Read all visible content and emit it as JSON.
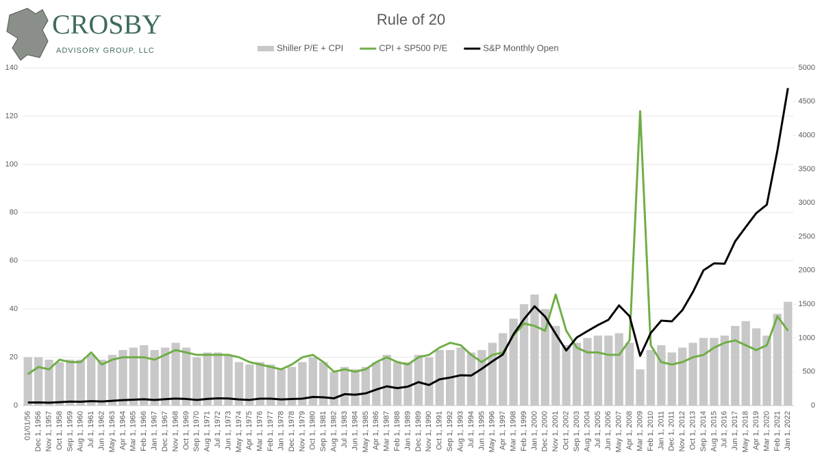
{
  "logo": {
    "name": "CROSBY",
    "tagline": "ADVISORY GROUP, LLC"
  },
  "chart_data": {
    "type": "combo",
    "title": "Rule of 20",
    "categories": [
      "01/01/56",
      "Dec 1, 1956",
      "Nov 1, 1957",
      "Oct 1, 1958",
      "Sep 1, 1959",
      "Aug 1, 1960",
      "Jul 1, 1961",
      "Jun 1, 1962",
      "May 1, 1963",
      "Apr 1, 1964",
      "Mar 1, 1965",
      "Feb 1, 1966",
      "Jan 1, 1967",
      "Dec 1, 1967",
      "Nov 1, 1968",
      "Oct 1, 1969",
      "Sep 1, 1970",
      "Aug 1, 1971",
      "Jul 1, 1972",
      "Jun 1, 1973",
      "May 1, 1974",
      "Apr 1, 1975",
      "Mar 1, 1976",
      "Feb 1, 1977",
      "Jan 1, 1978",
      "Dec 1, 1978",
      "Nov 1, 1979",
      "Oct 1, 1980",
      "Sep 1, 1981",
      "Aug 1, 1982",
      "Jul 1, 1983",
      "Jun 1, 1984",
      "May 1, 1985",
      "Apr 1, 1986",
      "Mar 1, 1987",
      "Feb 1, 1988",
      "Jan 1, 1989",
      "Dec 1, 1989",
      "Nov 1, 1990",
      "Oct 1, 1991",
      "Sep 1, 1992",
      "Aug 1, 1993",
      "Jul 1, 1994",
      "Jun 1, 1995",
      "May 1, 1996",
      "Apr 1, 1997",
      "Mar 1, 1998",
      "Feb 1, 1999",
      "Jan 1, 2000",
      "Dec 1, 2000",
      "Nov 1, 2001",
      "Oct 1, 2002",
      "Sep 1, 2003",
      "Aug 1, 2004",
      "Jul 1, 2005",
      "Jun 1, 2006",
      "May 1, 2007",
      "Apr 1, 2008",
      "Mar 1, 2009",
      "Feb 1, 2010",
      "Jan 1, 2011",
      "Dec 1, 2011",
      "Nov 1, 2012",
      "Oct 1, 2013",
      "Sep 1, 2014",
      "Aug 1, 2015",
      "Jul 1, 2016",
      "Jun 1, 2017",
      "May 1, 2018",
      "Apr 1, 2019",
      "Mar 1, 2020",
      "Feb 1, 2021",
      "Jan 1, 2022"
    ],
    "series": [
      {
        "name": "Shiller P/E + CPI",
        "type": "bar",
        "color": "#c8c8c8",
        "values": [
          20,
          20,
          19,
          18,
          19,
          19,
          21,
          19,
          21,
          23,
          24,
          25,
          23,
          24,
          26,
          24,
          20,
          22,
          22,
          21,
          18,
          17,
          18,
          17,
          15,
          16,
          18,
          20,
          18,
          14,
          16,
          15,
          16,
          18,
          21,
          18,
          18,
          21,
          20,
          23,
          23,
          24,
          22,
          23,
          26,
          30,
          36,
          42,
          46,
          40,
          33,
          25,
          26,
          28,
          29,
          29,
          30,
          26,
          15,
          23,
          25,
          22,
          24,
          26,
          28,
          28,
          29,
          33,
          35,
          32,
          29,
          38,
          43
        ]
      },
      {
        "name": "CPI + SP500 P/E",
        "type": "line",
        "color": "#70ad47",
        "values": [
          13,
          16,
          15,
          19,
          18,
          18,
          22,
          17,
          19,
          20,
          20,
          20,
          19,
          21,
          23,
          22,
          21,
          21,
          21,
          21,
          20,
          18,
          17,
          16,
          15,
          17,
          20,
          21,
          18,
          14,
          15,
          14,
          15,
          18,
          20,
          18,
          17,
          20,
          21,
          24,
          26,
          25,
          21,
          18,
          21,
          22,
          29,
          34,
          33,
          31,
          46,
          31,
          24,
          22,
          22,
          21,
          21,
          27,
          122,
          25,
          18,
          17,
          18,
          20,
          21,
          24,
          26,
          27,
          25,
          23,
          25,
          37,
          31
        ]
      },
      {
        "name": "S&P Monthly Open",
        "type": "line",
        "axis": "y2",
        "color": "#000000",
        "values": [
          45,
          46,
          42,
          50,
          58,
          56,
          65,
          59,
          70,
          80,
          86,
          92,
          82,
          94,
          103,
          97,
          82,
          98,
          107,
          104,
          90,
          83,
          102,
          101,
          90,
          96,
          102,
          127,
          122,
          107,
          168,
          160,
          180,
          236,
          284,
          257,
          280,
          346,
          304,
          388,
          414,
          448,
          444,
          544,
          654,
          757,
          1054,
          1280,
          1469,
          1315,
          1059,
          815,
          1008,
          1101,
          1191,
          1270,
          1482,
          1322,
          735,
          1073,
          1257,
          1246,
          1412,
          1681,
          2002,
          2104,
          2099,
          2431,
          2642,
          2848,
          2974,
          3774,
          4700
        ]
      }
    ],
    "ylim": [
      0,
      140
    ],
    "yticks": [
      0,
      20,
      40,
      60,
      80,
      100,
      120,
      140
    ],
    "y2lim": [
      0,
      5000
    ],
    "y2ticks": [
      0,
      500,
      1000,
      1500,
      2000,
      2500,
      3000,
      3500,
      4000,
      4500,
      5000
    ],
    "grid": true,
    "legend": "top"
  }
}
